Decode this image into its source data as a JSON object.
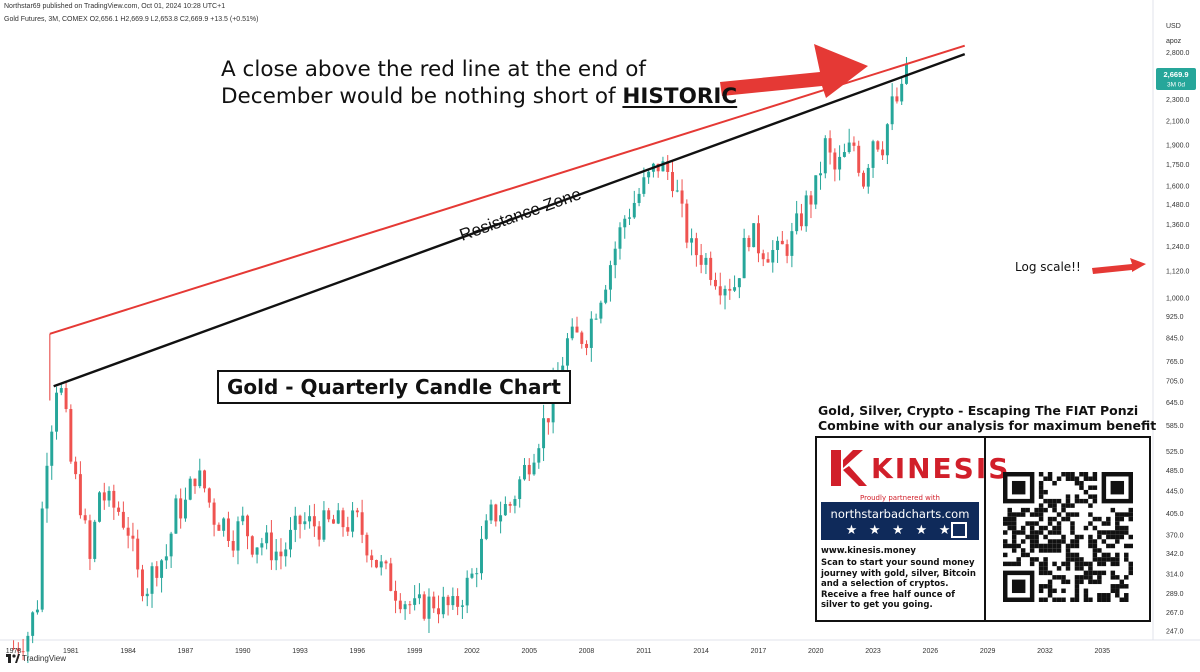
{
  "header": {
    "publisher_line": "Northstar69 published on TradingView.com, Oct 01, 2024 10:28 UTC+1",
    "symbol_line": "Gold Futures, 3M, COMEX  O2,656.1  H2,669.9  L2,653.8  C2,669.9  +13.5 (+0.51%)"
  },
  "price_axis": {
    "currency": "USD",
    "mode": "apoz",
    "last_price_label": "2,669.9",
    "interval_label": "3M 0d"
  },
  "annotations": {
    "headline_line1": "A close above the red line at the end of",
    "headline_line2": "December would be nothing short of ",
    "headline_emph": "HISTORIC",
    "resistance_label": "Resistance Zone",
    "chart_box_label": "Gold - Quarterly Candle Chart",
    "log_label": "Log scale!!"
  },
  "promo": {
    "title_line1": "Gold, Silver, Crypto - Escaping The FIAT Ponzi",
    "title_line2": "Combine with our analysis for maximum benefit",
    "brand": "KINESIS",
    "tagline": "Proudly partnered with",
    "banner_url": "northstarbadcharts.com",
    "banner_stars": "★ ★ ★ ★ ★",
    "site": "www.kinesis.money",
    "description": "Scan to start your sound money journey with gold, silver, Bitcoin and a selection of cryptos. Receive a free half ounce of silver to get you going."
  },
  "footer": {
    "brand": "TradingView"
  },
  "colors": {
    "up": "#26a69a",
    "down": "#ef5350",
    "resistance_red": "#e53935",
    "support_black": "#111111",
    "price_tag": "#26a69a",
    "kinesis_red": "#d11f2a",
    "banner_navy": "#0f2a5a"
  },
  "chart_data": {
    "type": "candlestick",
    "title": "Gold - Quarterly Candle Chart",
    "instrument": "Gold Futures",
    "interval": "3M",
    "y_scale": "log",
    "ylim": [
      238,
      2950
    ],
    "xlim": [
      1977.5,
      2037.5
    ],
    "x_ticks": [
      "1978",
      "1981",
      "1984",
      "1987",
      "1990",
      "1993",
      "1996",
      "1999",
      "2002",
      "2005",
      "2008",
      "2011",
      "2014",
      "2017",
      "2020",
      "2023",
      "2026",
      "2029",
      "2032",
      "2035"
    ],
    "y_ticks": [
      "247.0",
      "267.0",
      "289.0",
      "314.0",
      "342.0",
      "370.0",
      "405.0",
      "445.0",
      "485.0",
      "525.0",
      "585.0",
      "645.0",
      "705.0",
      "765.0",
      "845.0",
      "925.0",
      "1,000.0",
      "1,120.0",
      "1,240.0",
      "1,360.0",
      "1,480.0",
      "1,600.0",
      "1,750.0",
      "1,900.0",
      "2,100.0",
      "2,300.0",
      "2,500.0",
      "2,800.0"
    ],
    "candle_closes_key": [
      [
        1978.0,
        230
      ],
      [
        1978.75,
        245
      ],
      [
        1979.25,
        280
      ],
      [
        1979.5,
        410
      ],
      [
        1979.75,
        525
      ],
      [
        1980.0,
        600
      ],
      [
        1980.25,
        700
      ],
      [
        1980.5,
        670
      ],
      [
        1980.75,
        590
      ],
      [
        1981.0,
        500
      ],
      [
        1981.5,
        425
      ],
      [
        1982.0,
        330
      ],
      [
        1982.5,
        445
      ],
      [
        1983.0,
        420
      ],
      [
        1983.5,
        410
      ],
      [
        1984.0,
        380
      ],
      [
        1984.5,
        310
      ],
      [
        1985.0,
        300
      ],
      [
        1985.5,
        330
      ],
      [
        1986.0,
        340
      ],
      [
        1986.5,
        410
      ],
      [
        1987.0,
        420
      ],
      [
        1987.5,
        480
      ],
      [
        1988.0,
        450
      ],
      [
        1988.5,
        400
      ],
      [
        1989.0,
        390
      ],
      [
        1989.5,
        370
      ],
      [
        1990.0,
        390
      ],
      [
        1990.5,
        360
      ],
      [
        1991.0,
        360
      ],
      [
        1992.0,
        340
      ],
      [
        1993.0,
        390
      ],
      [
        1994.0,
        385
      ],
      [
        1995.0,
        387
      ],
      [
        1996.0,
        390
      ],
      [
        1997.0,
        330
      ],
      [
        1998.0,
        295
      ],
      [
        1999.0,
        270
      ],
      [
        2000.0,
        280
      ],
      [
        2001.0,
        270
      ],
      [
        2002.0,
        310
      ],
      [
        2003.0,
        400
      ],
      [
        2004.0,
        420
      ],
      [
        2005.0,
        510
      ],
      [
        2006.0,
        620
      ],
      [
        2007.0,
        830
      ],
      [
        2008.0,
        860
      ],
      [
        2009.0,
        1090
      ],
      [
        2010.0,
        1400
      ],
      [
        2011.0,
        1600
      ],
      [
        2011.75,
        1750
      ],
      [
        2012.5,
        1670
      ],
      [
        2013.0,
        1400
      ],
      [
        2013.5,
        1220
      ],
      [
        2014.0,
        1200
      ],
      [
        2015.0,
        1080
      ],
      [
        2015.75,
        1060
      ],
      [
        2016.5,
        1320
      ],
      [
        2017.0,
        1250
      ],
      [
        2018.0,
        1200
      ],
      [
        2018.75,
        1280
      ],
      [
        2019.5,
        1480
      ],
      [
        2020.0,
        1580
      ],
      [
        2020.5,
        1890
      ],
      [
        2021.0,
        1700
      ],
      [
        2021.5,
        1800
      ],
      [
        2022.0,
        1900
      ],
      [
        2022.5,
        1650
      ],
      [
        2023.0,
        1970
      ],
      [
        2023.5,
        1920
      ],
      [
        2024.0,
        2230
      ],
      [
        2024.5,
        2330
      ],
      [
        2024.75,
        2669.9
      ]
    ],
    "trendlines": [
      {
        "name": "red resistance line",
        "from": [
          1979.9,
          860
        ],
        "to": [
          2027.8,
          2880
        ]
      },
      {
        "name": "black support line",
        "from": [
          1980.1,
          690
        ],
        "to": [
          2027.8,
          2780
        ]
      }
    ],
    "last_close": 2669.9,
    "grid": false
  }
}
